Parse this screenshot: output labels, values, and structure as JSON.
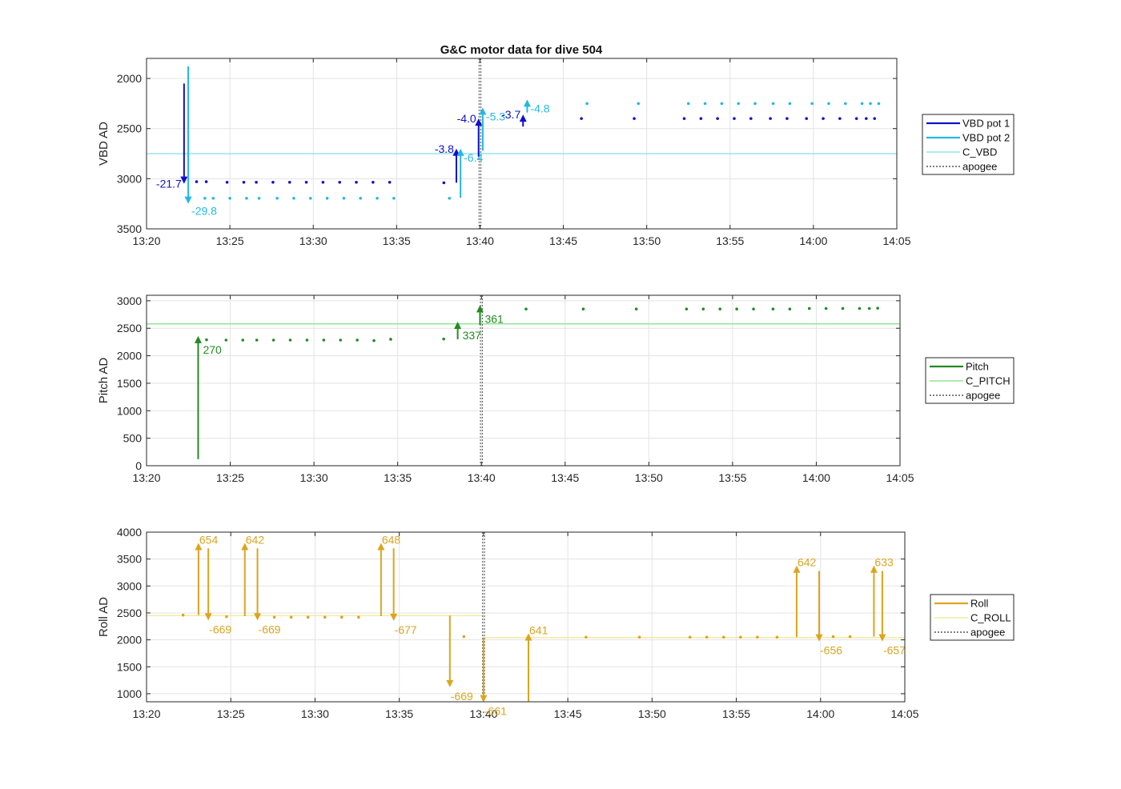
{
  "figure": {
    "title": "G&C motor data for dive 504",
    "xtick_labels": [
      "13:20",
      "13:25",
      "13:30",
      "13:35",
      "13:40",
      "13:45",
      "13:50",
      "13:55",
      "14:00",
      "14:05"
    ],
    "apogee_time": "13:40"
  },
  "colors": {
    "vbd_pot1": "#1010cc",
    "vbd_pot2": "#22b8e6",
    "c_vbd": "#7fe0e8",
    "pitch": "#228b22",
    "c_pitch": "#7ee07e",
    "roll": "#daa520",
    "c_roll": "#f0e68c",
    "apogee": "#555555"
  },
  "chart_data": [
    {
      "type": "scatter",
      "name": "vbd",
      "ylabel": "VBD AD",
      "xlim": [
        "13:20",
        "14:05"
      ],
      "ylim": [
        3500,
        1800
      ],
      "y_reversed": true,
      "yticks": [
        2000,
        2500,
        3000,
        3500
      ],
      "grid": true,
      "legend_position": "right",
      "legend": [
        "VBD pot 1",
        "VBD pot 2",
        "C_VBD",
        "apogee"
      ],
      "reference_lines": [
        {
          "label": "C_VBD",
          "y": 2750
        }
      ],
      "series": [
        {
          "name": "VBD pot 1",
          "points": [
            [
              "13:23:00",
              3030
            ],
            [
              "13:23:35",
              3030
            ],
            [
              "13:24:50",
              3035
            ],
            [
              "13:25:50",
              3035
            ],
            [
              "13:26:35",
              3035
            ],
            [
              "13:27:35",
              3035
            ],
            [
              "13:28:35",
              3035
            ],
            [
              "13:29:35",
              3035
            ],
            [
              "13:30:35",
              3035
            ],
            [
              "13:31:35",
              3035
            ],
            [
              "13:32:35",
              3035
            ],
            [
              "13:33:35",
              3035
            ],
            [
              "13:34:35",
              3035
            ],
            [
              "13:37:50",
              3040
            ],
            [
              "13:46:05",
              2400
            ],
            [
              "13:49:15",
              2400
            ],
            [
              "13:52:15",
              2400
            ],
            [
              "13:53:15",
              2400
            ],
            [
              "13:54:15",
              2400
            ],
            [
              "13:55:15",
              2400
            ],
            [
              "13:56:15",
              2400
            ],
            [
              "13:57:25",
              2400
            ],
            [
              "13:58:25",
              2400
            ],
            [
              "13:59:35",
              2400
            ],
            [
              "14:00:35",
              2400
            ],
            [
              "14:01:35",
              2400
            ],
            [
              "14:02:35",
              2400
            ],
            [
              "14:03:10",
              2400
            ],
            [
              "14:03:40",
              2400
            ]
          ]
        },
        {
          "name": "VBD pot 2",
          "points": [
            [
              "13:23:30",
              3195
            ],
            [
              "13:24:00",
              3195
            ],
            [
              "13:25:00",
              3195
            ],
            [
              "13:26:00",
              3195
            ],
            [
              "13:26:45",
              3195
            ],
            [
              "13:27:50",
              3195
            ],
            [
              "13:28:50",
              3195
            ],
            [
              "13:29:50",
              3195
            ],
            [
              "13:30:50",
              3195
            ],
            [
              "13:31:50",
              3195
            ],
            [
              "13:32:50",
              3195
            ],
            [
              "13:33:50",
              3195
            ],
            [
              "13:34:50",
              3195
            ],
            [
              "13:38:10",
              3195
            ],
            [
              "13:46:25",
              2250
            ],
            [
              "13:49:30",
              2250
            ],
            [
              "13:52:30",
              2250
            ],
            [
              "13:53:30",
              2250
            ],
            [
              "13:54:30",
              2250
            ],
            [
              "13:55:30",
              2250
            ],
            [
              "13:56:30",
              2250
            ],
            [
              "13:57:35",
              2250
            ],
            [
              "13:58:35",
              2250
            ],
            [
              "13:59:55",
              2250
            ],
            [
              "14:00:55",
              2250
            ],
            [
              "14:01:55",
              2250
            ],
            [
              "14:02:55",
              2250
            ],
            [
              "14:03:25",
              2250
            ],
            [
              "14:03:55",
              2250
            ]
          ]
        }
      ],
      "moves": [
        {
          "series": "VBD pot 1",
          "t": "13:22:15",
          "y0": 2050,
          "y1": 3050,
          "label": "-21.7"
        },
        {
          "series": "VBD pot 2",
          "t": "13:22:30",
          "y0": 1880,
          "y1": 3250,
          "label": "-29.8"
        },
        {
          "series": "VBD pot 1",
          "t": "13:38:35",
          "y0": 3040,
          "y1": 2700,
          "label": "-3.8"
        },
        {
          "series": "VBD pot 2",
          "t": "13:38:50",
          "y0": 3190,
          "y1": 2700,
          "label": "-6.4"
        },
        {
          "series": "VBD pot 1",
          "t": "13:39:55",
          "y0": 2780,
          "y1": 2400,
          "label": "-4.0"
        },
        {
          "series": "VBD pot 2",
          "t": "13:40:10",
          "y0": 2720,
          "y1": 2290,
          "label": "-5.3"
        },
        {
          "series": "VBD pot 1",
          "t": "13:42:35",
          "y0": 2480,
          "y1": 2360,
          "label": "-3.7"
        },
        {
          "series": "VBD pot 2",
          "t": "13:42:50",
          "y0": 2340,
          "y1": 2210,
          "label": "-4.8"
        }
      ]
    },
    {
      "type": "scatter",
      "name": "pitch",
      "ylabel": "Pitch AD",
      "xlim": [
        "13:20",
        "14:05"
      ],
      "ylim": [
        0,
        3100
      ],
      "yticks": [
        0,
        500,
        1000,
        1500,
        2000,
        2500,
        3000
      ],
      "grid": true,
      "legend_position": "right",
      "legend": [
        "Pitch",
        "C_PITCH",
        "apogee"
      ],
      "reference_lines": [
        {
          "label": "C_PITCH",
          "y": 2580
        }
      ],
      "series": [
        {
          "name": "Pitch",
          "points": [
            [
              "13:23:35",
              2290
            ],
            [
              "13:24:45",
              2285
            ],
            [
              "13:25:45",
              2285
            ],
            [
              "13:26:35",
              2285
            ],
            [
              "13:27:35",
              2285
            ],
            [
              "13:28:35",
              2285
            ],
            [
              "13:29:35",
              2285
            ],
            [
              "13:30:35",
              2285
            ],
            [
              "13:31:35",
              2285
            ],
            [
              "13:32:35",
              2285
            ],
            [
              "13:33:35",
              2275
            ],
            [
              "13:34:35",
              2300
            ],
            [
              "13:37:45",
              2305
            ],
            [
              "13:42:40",
              2850
            ],
            [
              "13:46:05",
              2850
            ],
            [
              "13:49:15",
              2850
            ],
            [
              "13:52:15",
              2850
            ],
            [
              "13:53:15",
              2850
            ],
            [
              "13:54:15",
              2850
            ],
            [
              "13:55:15",
              2850
            ],
            [
              "13:56:15",
              2850
            ],
            [
              "13:57:25",
              2850
            ],
            [
              "13:58:25",
              2850
            ],
            [
              "13:59:35",
              2860
            ],
            [
              "14:00:35",
              2860
            ],
            [
              "14:01:35",
              2860
            ],
            [
              "14:02:35",
              2860
            ],
            [
              "14:03:10",
              2860
            ],
            [
              "14:03:40",
              2865
            ]
          ]
        }
      ],
      "moves": [
        {
          "series": "Pitch",
          "t": "13:23:05",
          "y0": 120,
          "y1": 2360,
          "label": "270"
        },
        {
          "series": "Pitch",
          "t": "13:38:35",
          "y0": 2300,
          "y1": 2620,
          "label": "337"
        },
        {
          "series": "Pitch",
          "t": "13:39:55",
          "y0": 2560,
          "y1": 2920,
          "label": "361"
        }
      ]
    },
    {
      "type": "scatter",
      "name": "roll",
      "ylabel": "Roll AD",
      "xlim": [
        "13:20",
        "14:05"
      ],
      "ylim": [
        850,
        4000
      ],
      "yticks": [
        1000,
        1500,
        2000,
        2500,
        3000,
        3500,
        4000
      ],
      "grid": true,
      "legend_position": "right",
      "legend": [
        "Roll",
        "C_ROLL",
        "apogee"
      ],
      "reference_lines": [
        {
          "label": "C_ROLL",
          "y": 2450,
          "t0": "13:20",
          "t1": "13:40"
        },
        {
          "label": "C_ROLL",
          "y": 2040,
          "t0": "13:40",
          "t1": "14:05"
        }
      ],
      "series": [
        {
          "name": "Roll",
          "points": [
            [
              "13:22:10",
              2460
            ],
            [
              "13:24:45",
              2430
            ],
            [
              "13:27:35",
              2420
            ],
            [
              "13:28:35",
              2420
            ],
            [
              "13:29:35",
              2420
            ],
            [
              "13:30:35",
              2420
            ],
            [
              "13:31:35",
              2420
            ],
            [
              "13:32:35",
              2420
            ],
            [
              "13:38:50",
              2060
            ],
            [
              "13:46:05",
              2050
            ],
            [
              "13:49:15",
              2050
            ],
            [
              "13:52:15",
              2050
            ],
            [
              "13:53:15",
              2050
            ],
            [
              "13:54:15",
              2050
            ],
            [
              "13:55:15",
              2050
            ],
            [
              "13:56:15",
              2050
            ],
            [
              "13:57:25",
              2050
            ],
            [
              "14:00:45",
              2060
            ],
            [
              "14:01:45",
              2060
            ]
          ]
        }
      ],
      "moves": [
        {
          "series": "Roll",
          "t": "13:23:05",
          "y0": 2460,
          "y1": 3800,
          "label": "654"
        },
        {
          "series": "Roll",
          "t": "13:23:40",
          "y0": 3700,
          "y1": 2360,
          "label": "-669"
        },
        {
          "series": "Roll",
          "t": "13:25:50",
          "y0": 2440,
          "y1": 3800,
          "label": "642"
        },
        {
          "series": "Roll",
          "t": "13:26:35",
          "y0": 3700,
          "y1": 2360,
          "label": "-669"
        },
        {
          "series": "Roll",
          "t": "13:33:55",
          "y0": 2440,
          "y1": 3800,
          "label": "648"
        },
        {
          "series": "Roll",
          "t": "13:34:40",
          "y0": 3700,
          "y1": 2350,
          "label": "-677"
        },
        {
          "series": "Roll",
          "t": "13:38:00",
          "y0": 2450,
          "y1": 1120,
          "label": "-669"
        },
        {
          "series": "Roll",
          "t": "13:40:00",
          "y0": 2040,
          "y1": 840,
          "label": "-661"
        },
        {
          "series": "Roll",
          "t": "13:42:40",
          "y0": 850,
          "y1": 2120,
          "label": "641"
        },
        {
          "series": "Roll",
          "t": "13:58:35",
          "y0": 2050,
          "y1": 3380,
          "label": "642"
        },
        {
          "series": "Roll",
          "t": "13:59:55",
          "y0": 3280,
          "y1": 1970,
          "label": "-656"
        },
        {
          "series": "Roll",
          "t": "14:03:10",
          "y0": 2060,
          "y1": 3380,
          "label": "633"
        },
        {
          "series": "Roll",
          "t": "14:03:40",
          "y0": 3280,
          "y1": 1970,
          "label": "-657"
        }
      ]
    }
  ]
}
